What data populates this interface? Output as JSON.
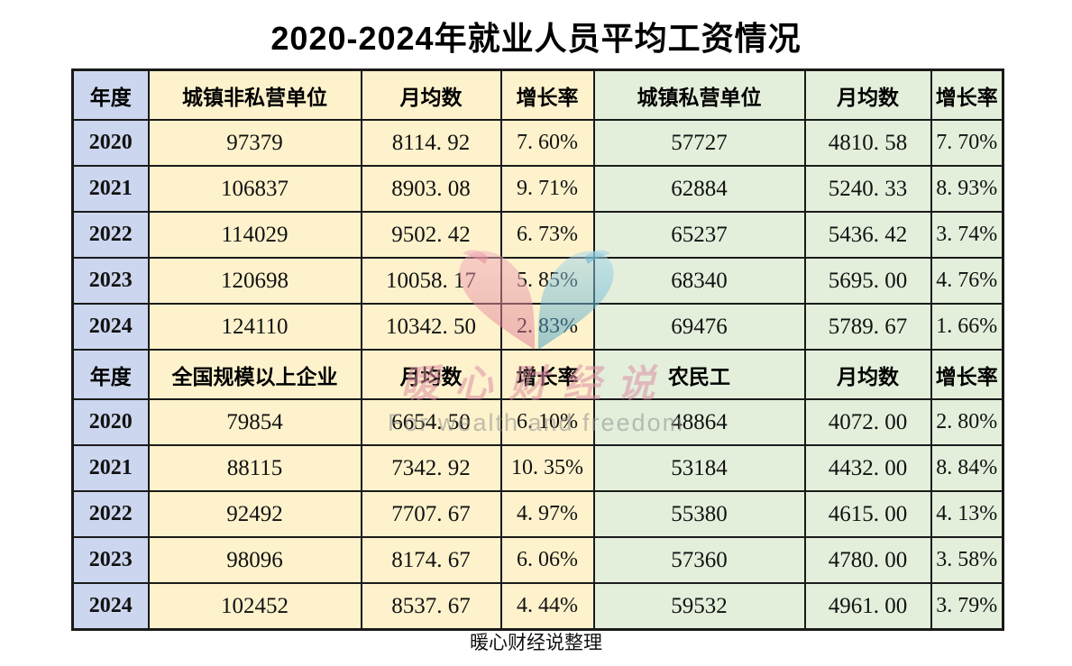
{
  "title": "2020-2024年就业人员平均工资情况",
  "footer": "暖心财经说整理",
  "watermark": {
    "cn": "暖心财经说",
    "en": "For wealth and freedom",
    "logo": "two-birds-heart-icon"
  },
  "colors": {
    "year_column": "#ccd6ee",
    "left_block": "#fdf2cc",
    "right_block": "#e3efdb",
    "border": "#1a1a1a",
    "watermark_pink": "#e28ca2",
    "watermark_blue": "#5aa9cc",
    "watermark_gray": "#8f8f8f"
  },
  "chart_data": {
    "type": "table",
    "title": "2020-2024年就业人员平均工资情况",
    "sections": [
      {
        "headers": [
          "年度",
          "城镇非私营单位",
          "月均数",
          "增长率",
          "城镇私营单位",
          "月均数",
          "增长率"
        ],
        "rows": [
          [
            "2020",
            "97379",
            "8114. 92",
            "7. 60%",
            "57727",
            "4810. 58",
            "7. 70%"
          ],
          [
            "2021",
            "106837",
            "8903. 08",
            "9. 71%",
            "62884",
            "5240. 33",
            "8. 93%"
          ],
          [
            "2022",
            "114029",
            "9502. 42",
            "6. 73%",
            "65237",
            "5436. 42",
            "3. 74%"
          ],
          [
            "2023",
            "120698",
            "10058. 17",
            "5. 85%",
            "68340",
            "5695. 00",
            "4. 76%"
          ],
          [
            "2024",
            "124110",
            "10342. 50",
            "2. 83%",
            "69476",
            "5789. 67",
            "1. 66%"
          ]
        ]
      },
      {
        "headers": [
          "年度",
          "全国规模以上企业",
          "月均数",
          "增长率",
          "农民工",
          "月均数",
          "增长率"
        ],
        "rows": [
          [
            "2020",
            "79854",
            "6654. 50",
            "6. 10%",
            "48864",
            "4072. 00",
            "2. 80%"
          ],
          [
            "2021",
            "88115",
            "7342. 92",
            "10. 35%",
            "53184",
            "4432. 00",
            "8. 84%"
          ],
          [
            "2022",
            "92492",
            "7707. 67",
            "4. 97%",
            "55380",
            "4615. 00",
            "4. 13%"
          ],
          [
            "2023",
            "98096",
            "8174. 67",
            "6. 06%",
            "57360",
            "4780. 00",
            "3. 58%"
          ],
          [
            "2024",
            "102452",
            "8537. 67",
            "4. 44%",
            "59532",
            "4961. 00",
            "3. 79%"
          ]
        ]
      }
    ]
  }
}
